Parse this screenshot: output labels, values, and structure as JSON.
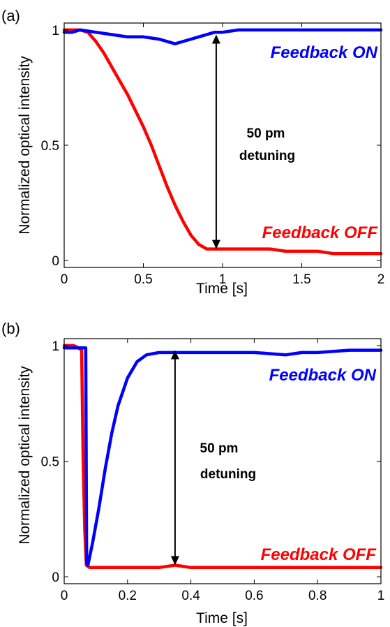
{
  "chart_data": [
    {
      "panel_label": "(a)",
      "type": "line",
      "xlabel": "Time [s]",
      "ylabel": "Normalized optical intensity",
      "xlim": [
        0,
        2
      ],
      "ylim": [
        -0.03,
        1.03
      ],
      "xticks": [
        0,
        0.5,
        1,
        1.5,
        2
      ],
      "xtick_labels": [
        "0",
        "0.5",
        "1",
        "1.5",
        "2"
      ],
      "yticks": [
        0,
        0.5,
        1
      ],
      "ytick_labels": [
        "0",
        "0.5",
        "1"
      ],
      "annotation": {
        "lines": [
          "50 pm",
          "detuning"
        ],
        "arrow_x": 0.96,
        "arrow_from": 0.05,
        "arrow_to": 0.98
      },
      "series": [
        {
          "name": "Feedback ON",
          "color": "#0000ff",
          "x": [
            0,
            0.05,
            0.1,
            0.2,
            0.3,
            0.4,
            0.5,
            0.6,
            0.7,
            0.75,
            0.8,
            0.85,
            0.9,
            0.95,
            1.0,
            1.1,
            1.2,
            1.3,
            1.4,
            1.5,
            1.6,
            1.7,
            1.8,
            1.9,
            2.0
          ],
          "y": [
            0.99,
            0.99,
            1.0,
            0.99,
            0.98,
            0.97,
            0.97,
            0.96,
            0.94,
            0.95,
            0.96,
            0.97,
            0.98,
            0.99,
            0.99,
            1.0,
            1.0,
            1.0,
            1.0,
            1.0,
            1.0,
            1.0,
            1.0,
            1.0,
            1.0
          ]
        },
        {
          "name": "Feedback OFF",
          "color": "#ff0000",
          "x": [
            0,
            0.05,
            0.1,
            0.15,
            0.2,
            0.25,
            0.3,
            0.35,
            0.4,
            0.45,
            0.5,
            0.55,
            0.6,
            0.65,
            0.7,
            0.75,
            0.8,
            0.85,
            0.9,
            0.95,
            1.0,
            1.1,
            1.2,
            1.3,
            1.4,
            1.5,
            1.6,
            1.7,
            1.8,
            1.9,
            2.0
          ],
          "y": [
            1.0,
            1.0,
            1.0,
            0.99,
            0.95,
            0.9,
            0.84,
            0.78,
            0.72,
            0.65,
            0.58,
            0.5,
            0.41,
            0.32,
            0.24,
            0.17,
            0.11,
            0.07,
            0.05,
            0.05,
            0.05,
            0.05,
            0.05,
            0.05,
            0.04,
            0.04,
            0.04,
            0.03,
            0.03,
            0.03,
            0.03
          ]
        }
      ]
    },
    {
      "panel_label": "(b)",
      "type": "line",
      "xlabel": "Time [s]",
      "ylabel": "Normalized optical intensity",
      "xlim": [
        0,
        1
      ],
      "ylim": [
        -0.03,
        1.03
      ],
      "xticks": [
        0,
        0.2,
        0.4,
        0.6,
        0.8,
        1
      ],
      "xtick_labels": [
        "0",
        "0.2",
        "0.4",
        "0.6",
        "0.8",
        "1"
      ],
      "yticks": [
        0,
        0.5,
        1
      ],
      "ytick_labels": [
        "0",
        "0.5",
        "1"
      ],
      "annotation": {
        "lines": [
          "50 pm",
          "detuning"
        ],
        "arrow_x": 0.35,
        "arrow_from": 0.05,
        "arrow_to": 0.98
      },
      "series": [
        {
          "name": "Feedback ON",
          "color": "#0000ff",
          "x": [
            0,
            0.03,
            0.06,
            0.068,
            0.071,
            0.075,
            0.09,
            0.11,
            0.13,
            0.15,
            0.17,
            0.2,
            0.23,
            0.26,
            0.3,
            0.35,
            0.4,
            0.5,
            0.6,
            0.7,
            0.75,
            0.8,
            0.9,
            1.0
          ],
          "y": [
            0.99,
            0.99,
            0.99,
            0.99,
            0.06,
            0.05,
            0.15,
            0.3,
            0.47,
            0.62,
            0.74,
            0.86,
            0.93,
            0.96,
            0.97,
            0.97,
            0.97,
            0.97,
            0.97,
            0.96,
            0.97,
            0.97,
            0.98,
            0.98
          ]
        },
        {
          "name": "Feedback OFF",
          "color": "#ff0000",
          "x": [
            0,
            0.02,
            0.03,
            0.045,
            0.055,
            0.06,
            0.065,
            0.07,
            0.08,
            0.1,
            0.15,
            0.2,
            0.3,
            0.35,
            0.4,
            0.5,
            0.6,
            0.7,
            0.8,
            0.9,
            1.0
          ],
          "y": [
            1.0,
            1.0,
            1.0,
            0.99,
            0.98,
            0.5,
            0.2,
            0.05,
            0.04,
            0.04,
            0.04,
            0.04,
            0.04,
            0.05,
            0.04,
            0.04,
            0.04,
            0.04,
            0.04,
            0.04,
            0.04
          ]
        }
      ]
    }
  ]
}
